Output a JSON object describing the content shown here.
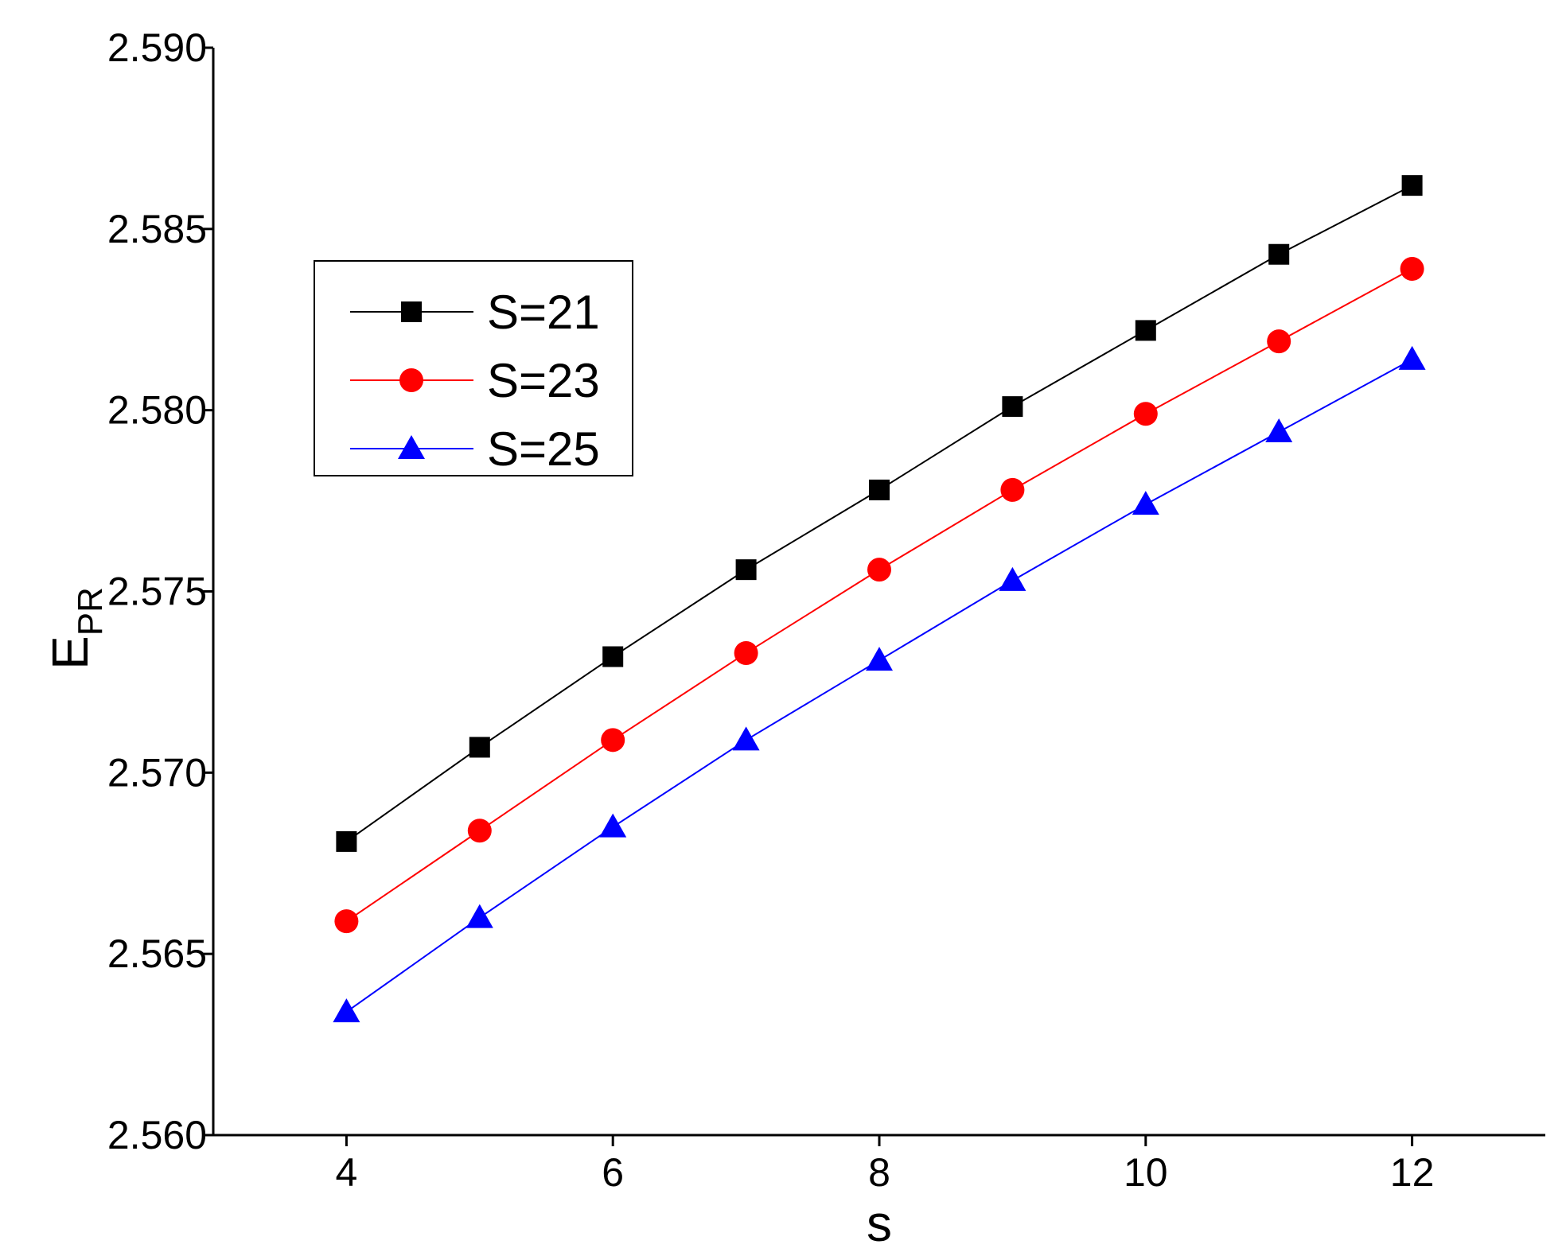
{
  "chart_data": {
    "type": "line",
    "title": "",
    "xlabel": "s",
    "ylabel_main": "E",
    "ylabel_sub": "PR",
    "xlim": [
      3,
      13
    ],
    "ylim": [
      2.56,
      2.59
    ],
    "x_ticks": [
      4,
      6,
      8,
      10,
      12
    ],
    "x_tick_labels": [
      "4",
      "6",
      "8",
      "10",
      "12"
    ],
    "y_ticks": [
      2.56,
      2.565,
      2.57,
      2.575,
      2.58,
      2.585,
      2.59
    ],
    "y_tick_labels": [
      "2.560",
      "2.565",
      "2.570",
      "2.575",
      "2.580",
      "2.585",
      "2.590"
    ],
    "grid": false,
    "legend_position": "upper-left",
    "x": [
      4,
      5,
      6,
      7,
      8,
      9,
      10,
      11,
      12
    ],
    "series": [
      {
        "name": "S=21",
        "color": "#000000",
        "marker": "square",
        "values": [
          2.5681,
          2.5707,
          2.5732,
          2.5756,
          2.5778,
          2.5801,
          2.5822,
          2.5843,
          2.5862
        ]
      },
      {
        "name": "S=23",
        "color": "#ff0000",
        "marker": "circle",
        "values": [
          2.5659,
          2.5684,
          2.5709,
          2.5733,
          2.5756,
          2.5778,
          2.5799,
          2.5819,
          2.5839
        ]
      },
      {
        "name": "S=25",
        "color": "#0000ff",
        "marker": "triangle",
        "values": [
          2.5634,
          2.566,
          2.5685,
          2.5709,
          2.5731,
          2.5753,
          2.5774,
          2.5794,
          2.5814
        ]
      }
    ]
  }
}
